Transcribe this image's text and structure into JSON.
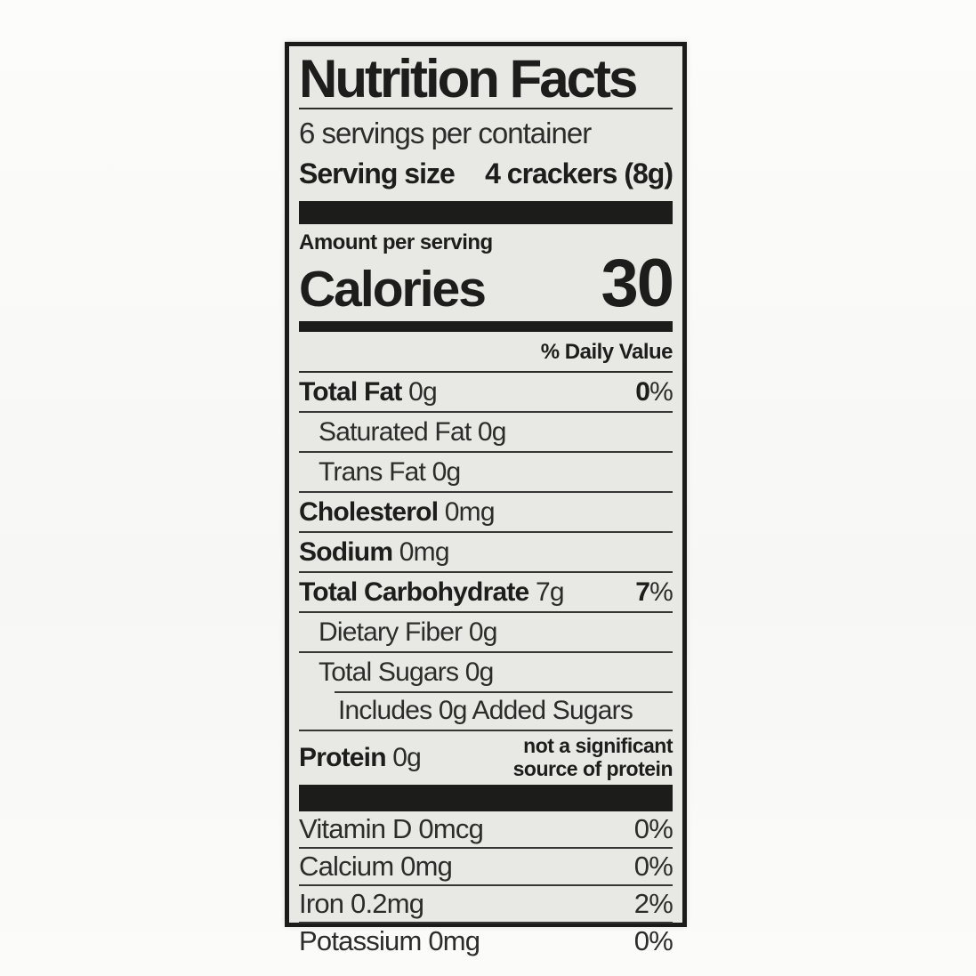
{
  "label": {
    "title": "Nutrition Facts",
    "servings_per_container": "6 servings per container",
    "serving_size_label": "Serving size",
    "serving_size_value": "4 crackers (8g)",
    "amount_per_serving": "Amount per serving",
    "calories_label": "Calories",
    "calories_value": "30",
    "daily_value_header": "% Daily Value",
    "nutrients": [
      {
        "name": "Total Fat",
        "amount": "0g",
        "dv_num": "0",
        "dv_pct": "%",
        "bold": true,
        "indent": 0
      },
      {
        "name": "Saturated Fat",
        "amount": "0g",
        "dv_num": "",
        "dv_pct": "",
        "bold": false,
        "indent": 1
      },
      {
        "name": "Trans Fat",
        "amount": "0g",
        "dv_num": "",
        "dv_pct": "",
        "bold": false,
        "indent": 1
      },
      {
        "name": "Cholesterol",
        "amount": "0mg",
        "dv_num": "",
        "dv_pct": "",
        "bold": true,
        "indent": 0
      },
      {
        "name": "Sodium",
        "amount": "0mg",
        "dv_num": "",
        "dv_pct": "",
        "bold": true,
        "indent": 0
      },
      {
        "name": "Total Carbohydrate",
        "amount": "7g",
        "dv_num": "7",
        "dv_pct": "%",
        "bold": true,
        "indent": 0
      },
      {
        "name": "Dietary Fiber",
        "amount": "0g",
        "dv_num": "",
        "dv_pct": "",
        "bold": false,
        "indent": 1
      },
      {
        "name": "Total Sugars",
        "amount": "0g",
        "dv_num": "",
        "dv_pct": "",
        "bold": false,
        "indent": 1
      },
      {
        "name": "Includes 0g Added Sugars",
        "amount": "",
        "dv_num": "",
        "dv_pct": "",
        "bold": false,
        "indent": 2,
        "rule_indent": true
      },
      {
        "name": "Protein",
        "amount": "0g",
        "dv_num": "",
        "dv_pct": "",
        "bold": true,
        "indent": 0,
        "note_line1": "not a significant",
        "note_line2": "source of protein"
      }
    ],
    "micronutrients": [
      {
        "name": "Vitamin D",
        "amount": "0mcg",
        "dv": "0%"
      },
      {
        "name": "Calcium",
        "amount": "0mg",
        "dv": "0%"
      },
      {
        "name": "Iron",
        "amount": "0.2mg",
        "dv": "2%"
      },
      {
        "name": "Potassium",
        "amount": "0mg",
        "dv": "0%"
      }
    ],
    "colors": {
      "label_background": "#e8e8e5",
      "border_and_bars": "#1c1c1a",
      "text": "#232321"
    }
  }
}
